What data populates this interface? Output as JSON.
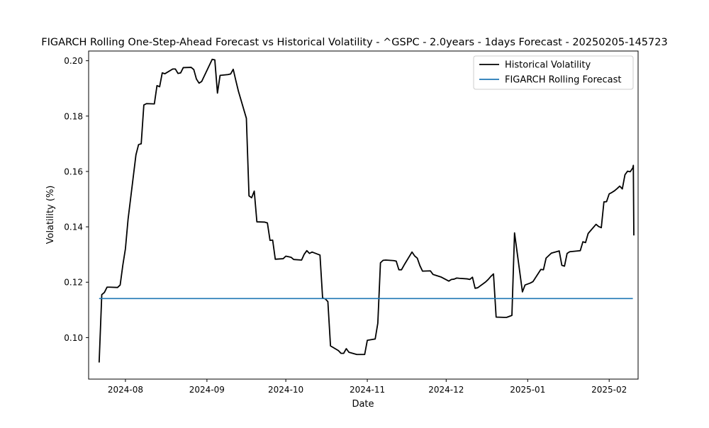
{
  "chart_data": {
    "type": "line",
    "title": "FIGARCH Rolling One-Step-Ahead Forecast vs Historical Volatility - ^GSPC - 2.0years - 1days Forecast - 20250205-145723",
    "xlabel": "Date",
    "ylabel": "Volatility (%)",
    "x_ticks": [
      "2024-08",
      "2024-09",
      "2024-10",
      "2024-11",
      "2024-12",
      "2025-01",
      "2025-02"
    ],
    "x_tick_dates": [
      "2024-08-01",
      "2024-09-01",
      "2024-10-01",
      "2024-11-01",
      "2024-12-01",
      "2025-01-01",
      "2025-02-01"
    ],
    "y_ticks": [
      0.1,
      0.12,
      0.14,
      0.16,
      0.18,
      0.2
    ],
    "y_tick_labels": [
      "0.10",
      "0.12",
      "0.14",
      "0.16",
      "0.18",
      "0.20"
    ],
    "xlim": [
      "2024-07-18",
      "2025-02-12"
    ],
    "ylim": [
      0.085,
      0.2035
    ],
    "grid": false,
    "legend_position": "upper right",
    "series": [
      {
        "name": "Historical Volatility",
        "color": "#000000",
        "points": [
          [
            "2024-07-22",
            0.091
          ],
          [
            "2024-07-23",
            0.1155
          ],
          [
            "2024-07-24",
            0.1163
          ],
          [
            "2024-07-25",
            0.1182
          ],
          [
            "2024-07-26",
            0.1182
          ],
          [
            "2024-07-29",
            0.1181
          ],
          [
            "2024-07-30",
            0.119
          ],
          [
            "2024-07-31",
            0.1261
          ],
          [
            "2024-08-01",
            0.1321
          ],
          [
            "2024-08-02",
            0.1427
          ],
          [
            "2024-08-05",
            0.166
          ],
          [
            "2024-08-06",
            0.1697
          ],
          [
            "2024-08-07",
            0.17
          ],
          [
            "2024-08-08",
            0.184
          ],
          [
            "2024-08-09",
            0.1845
          ],
          [
            "2024-08-12",
            0.1844
          ],
          [
            "2024-08-13",
            0.191
          ],
          [
            "2024-08-14",
            0.1906
          ],
          [
            "2024-08-15",
            0.1956
          ],
          [
            "2024-08-16",
            0.1953
          ],
          [
            "2024-08-19",
            0.197
          ],
          [
            "2024-08-20",
            0.197
          ],
          [
            "2024-08-21",
            0.1954
          ],
          [
            "2024-08-22",
            0.1956
          ],
          [
            "2024-08-23",
            0.1975
          ],
          [
            "2024-08-26",
            0.1976
          ],
          [
            "2024-08-27",
            0.1968
          ],
          [
            "2024-08-28",
            0.1934
          ],
          [
            "2024-08-29",
            0.1919
          ],
          [
            "2024-08-30",
            0.1925
          ],
          [
            "2024-09-03",
            0.2005
          ],
          [
            "2024-09-04",
            0.2003
          ],
          [
            "2024-09-05",
            0.1883
          ],
          [
            "2024-09-06",
            0.1947
          ],
          [
            "2024-09-09",
            0.195
          ],
          [
            "2024-09-10",
            0.1952
          ],
          [
            "2024-09-11",
            0.1969
          ],
          [
            "2024-09-12",
            0.1928
          ],
          [
            "2024-09-13",
            0.1889
          ],
          [
            "2024-09-16",
            0.1792
          ],
          [
            "2024-09-17",
            0.1512
          ],
          [
            "2024-09-18",
            0.1505
          ],
          [
            "2024-09-19",
            0.1529
          ],
          [
            "2024-09-20",
            0.1418
          ],
          [
            "2024-09-23",
            0.1417
          ],
          [
            "2024-09-24",
            0.1414
          ],
          [
            "2024-09-25",
            0.1351
          ],
          [
            "2024-09-26",
            0.1352
          ],
          [
            "2024-09-27",
            0.1283
          ],
          [
            "2024-09-30",
            0.1285
          ],
          [
            "2024-10-01",
            0.1294
          ],
          [
            "2024-10-02",
            0.1292
          ],
          [
            "2024-10-03",
            0.129
          ],
          [
            "2024-10-04",
            0.1282
          ],
          [
            "2024-10-07",
            0.128
          ],
          [
            "2024-10-08",
            0.1301
          ],
          [
            "2024-10-09",
            0.1314
          ],
          [
            "2024-10-10",
            0.1304
          ],
          [
            "2024-10-11",
            0.1309
          ],
          [
            "2024-10-14",
            0.1298
          ],
          [
            "2024-10-15",
            0.1143
          ],
          [
            "2024-10-16",
            0.114
          ],
          [
            "2024-10-17",
            0.113
          ],
          [
            "2024-10-18",
            0.097
          ],
          [
            "2024-10-21",
            0.0953
          ],
          [
            "2024-10-22",
            0.0943
          ],
          [
            "2024-10-23",
            0.0943
          ],
          [
            "2024-10-24",
            0.096
          ],
          [
            "2024-10-25",
            0.0947
          ],
          [
            "2024-10-28",
            0.0939
          ],
          [
            "2024-10-29",
            0.0939
          ],
          [
            "2024-10-30",
            0.0939
          ],
          [
            "2024-10-31",
            0.0939
          ],
          [
            "2024-11-01",
            0.099
          ],
          [
            "2024-11-04",
            0.0995
          ],
          [
            "2024-11-05",
            0.1052
          ],
          [
            "2024-11-06",
            0.127
          ],
          [
            "2024-11-07",
            0.1279
          ],
          [
            "2024-11-08",
            0.128
          ],
          [
            "2024-11-11",
            0.1278
          ],
          [
            "2024-11-12",
            0.1276
          ],
          [
            "2024-11-13",
            0.1245
          ],
          [
            "2024-11-14",
            0.1245
          ],
          [
            "2024-11-15",
            0.1262
          ],
          [
            "2024-11-18",
            0.1309
          ],
          [
            "2024-11-19",
            0.1295
          ],
          [
            "2024-11-20",
            0.1287
          ],
          [
            "2024-11-21",
            0.126
          ],
          [
            "2024-11-22",
            0.124
          ],
          [
            "2024-11-25",
            0.1241
          ],
          [
            "2024-11-26",
            0.1228
          ],
          [
            "2024-11-27",
            0.1225
          ],
          [
            "2024-11-29",
            0.1219
          ],
          [
            "2024-12-02",
            0.1204
          ],
          [
            "2024-12-03",
            0.121
          ],
          [
            "2024-12-04",
            0.1211
          ],
          [
            "2024-12-05",
            0.1215
          ],
          [
            "2024-12-06",
            0.1214
          ],
          [
            "2024-12-09",
            0.1212
          ],
          [
            "2024-12-10",
            0.121
          ],
          [
            "2024-12-11",
            0.1218
          ],
          [
            "2024-12-12",
            0.1178
          ],
          [
            "2024-12-13",
            0.118
          ],
          [
            "2024-12-16",
            0.1201
          ],
          [
            "2024-12-17",
            0.121
          ],
          [
            "2024-12-18",
            0.1221
          ],
          [
            "2024-12-19",
            0.123
          ],
          [
            "2024-12-20",
            0.1074
          ],
          [
            "2024-12-23",
            0.1073
          ],
          [
            "2024-12-24",
            0.1073
          ],
          [
            "2024-12-26",
            0.108
          ],
          [
            "2024-12-27",
            0.1378
          ],
          [
            "2024-12-30",
            0.1165
          ],
          [
            "2024-12-31",
            0.119
          ],
          [
            "2025-01-02",
            0.1197
          ],
          [
            "2025-01-03",
            0.1202
          ],
          [
            "2025-01-06",
            0.1246
          ],
          [
            "2025-01-07",
            0.1245
          ],
          [
            "2025-01-08",
            0.1287
          ],
          [
            "2025-01-10",
            0.1305
          ],
          [
            "2025-01-13",
            0.1313
          ],
          [
            "2025-01-14",
            0.1261
          ],
          [
            "2025-01-15",
            0.1258
          ],
          [
            "2025-01-16",
            0.1304
          ],
          [
            "2025-01-17",
            0.131
          ],
          [
            "2025-01-21",
            0.1314
          ],
          [
            "2025-01-22",
            0.1346
          ],
          [
            "2025-01-23",
            0.1343
          ],
          [
            "2025-01-24",
            0.1376
          ],
          [
            "2025-01-27",
            0.1409
          ],
          [
            "2025-01-28",
            0.1401
          ],
          [
            "2025-01-29",
            0.1397
          ],
          [
            "2025-01-30",
            0.149
          ],
          [
            "2025-01-31",
            0.1491
          ],
          [
            "2025-02-01",
            0.1519
          ],
          [
            "2025-02-02",
            0.1524
          ],
          [
            "2025-02-03",
            0.153
          ],
          [
            "2025-02-04",
            0.1538
          ],
          [
            "2025-02-05",
            0.1547
          ],
          [
            "2025-02-06",
            0.1537
          ],
          [
            "2025-02-07",
            0.1588
          ],
          [
            "2025-02-08",
            0.1601
          ],
          [
            "2025-02-09",
            0.1599
          ],
          [
            "2025-02-10",
            0.1613
          ],
          [
            "2025-02-10",
            0.1622
          ],
          [
            "2025-02-10",
            0.1369
          ]
        ]
      },
      {
        "name": "FIGARCH Rolling Forecast",
        "color": "#1f77b4",
        "points": [
          [
            "2024-07-22",
            0.1141
          ],
          [
            "2025-02-10",
            0.1141
          ]
        ]
      }
    ]
  }
}
